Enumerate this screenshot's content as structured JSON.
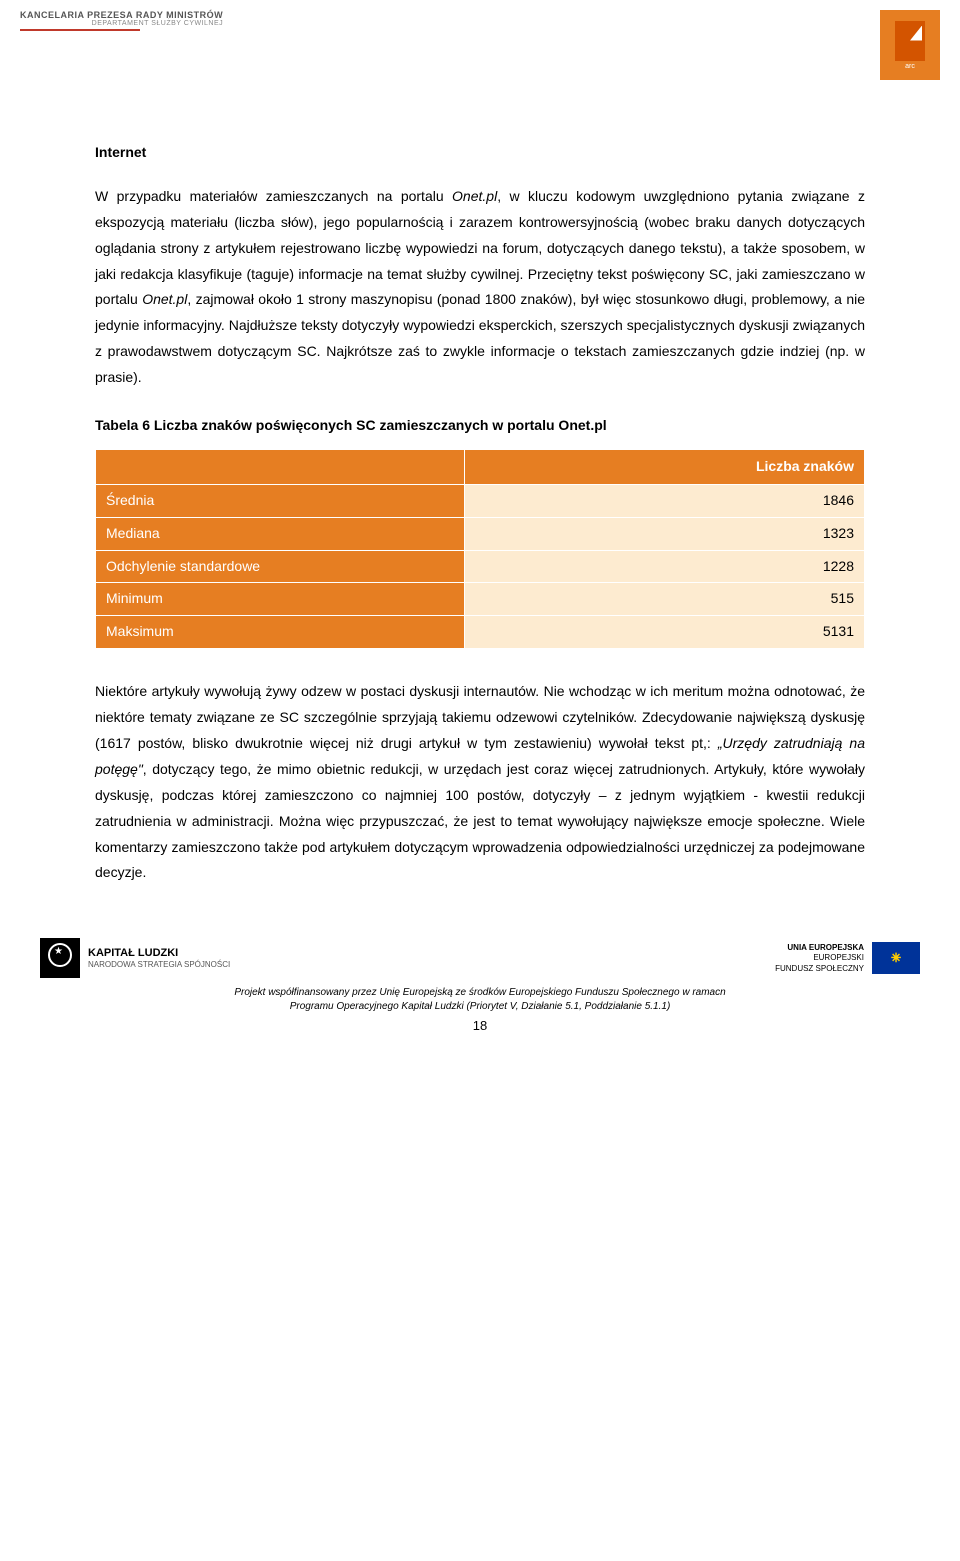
{
  "header": {
    "left_title": "KANCELARIA PREZESA RADY MINISTRÓW",
    "left_subtitle": "DEPARTAMENT SŁUŻBY CYWILNEJ",
    "right_text": "arc"
  },
  "section_title": "Internet",
  "paragraph1_pre": "W przypadku materiałów zamieszczanych na portalu ",
  "paragraph1_italic1": "Onet.pl",
  "paragraph1_mid": ", w kluczu kodowym uwzględniono pytania związane z ekspozycją materiału (liczba słów), jego popularnością i zarazem kontrowersyjnością (wobec braku danych dotyczących oglądania strony z artykułem rejestrowano liczbę wypowiedzi na forum, dotyczących danego tekstu), a także sposobem, w jaki redakcja klasyfikuje (taguje) informacje na temat służby cywilnej. Przeciętny tekst poświęcony SC, jaki zamieszczano w portalu ",
  "paragraph1_italic2": "Onet.pl",
  "paragraph1_post": ", zajmował około 1 strony maszynopisu (ponad 1800 znaków), był więc stosunkowo długi, problemowy, a nie jedynie informacyjny. Najdłuższe teksty dotyczyły wypowiedzi eksperckich, szerszych specjalistycznych dyskusji związanych z prawodawstwem dotyczącym SC. Najkrótsze zaś to zwykle informacje o tekstach zamieszczanych gdzie indziej (np. w prasie).",
  "table": {
    "title": "Tabela 6 Liczba znaków poświęconych SC zamieszczanych w portalu Onet.pl",
    "header_col2": "Liczba znaków",
    "rows": [
      {
        "label": "Średnia",
        "value": "1846"
      },
      {
        "label": "Mediana",
        "value": "1323"
      },
      {
        "label": "Odchylenie standardowe",
        "value": "1228"
      },
      {
        "label": "Minimum",
        "value": "515"
      },
      {
        "label": "Maksimum",
        "value": "5131"
      }
    ]
  },
  "paragraph2_pre": "Niektóre artykuły wywołują żywy odzew w postaci dyskusji internautów. Nie wchodząc w ich meritum można odnotować, że niektóre tematy związane ze SC szczególnie sprzyjają takiemu odzewowi czytelników. Zdecydowanie największą dyskusję (1617 postów, blisko dwukrotnie więcej niż drugi artykuł w tym zestawieniu) wywołał tekst pt,: ",
  "paragraph2_quote": "„Urzędy zatrudniają na potęgę\"",
  "paragraph2_post": ", dotyczący tego, że mimo obietnic redukcji, w urzędach jest coraz więcej zatrudnionych. Artykuły, które wywołały dyskusję, podczas której zamieszczono co najmniej 100 postów, dotyczyły – z jednym wyjątkiem - kwestii redukcji zatrudnienia w administracji. Można więc przypuszczać, że jest to temat wywołujący największe emocje społeczne. Wiele komentarzy zamieszczono także pod artykułem dotyczącym wprowadzenia odpowiedzialności urzędniczej za podejmowane decyzje.",
  "footer": {
    "kl_title": "KAPITAŁ LUDZKI",
    "kl_sub": "NARODOWA STRATEGIA SPÓJNOŚCI",
    "eu_line1": "UNIA EUROPEJSKA",
    "eu_line2": "EUROPEJSKI",
    "eu_line3": "FUNDUSZ SPOŁECZNY",
    "text_line1": "Projekt współfinansowany przez Unię Europejską ze środków Europejskiego Funduszu Społecznego w ramacn",
    "text_line2": "Programu Operacyjnego Kapitał Ludzki (Priorytet V, Działanie 5.1, Poddziałanie 5.1.1)",
    "page_number": "18"
  }
}
